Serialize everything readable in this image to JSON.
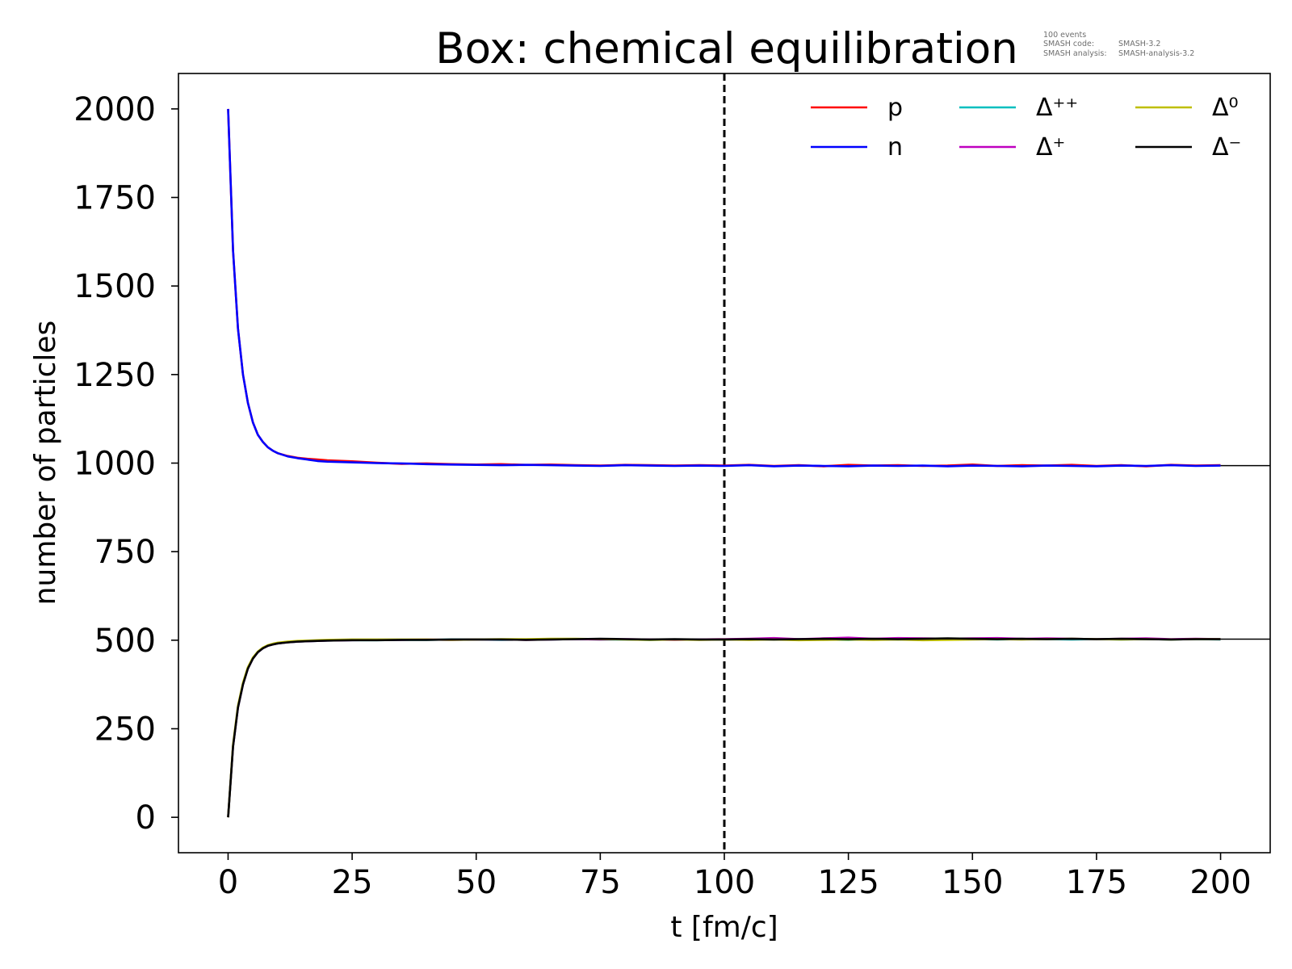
{
  "chart_data": {
    "type": "line",
    "title": "Box: chemical equilibration",
    "xlabel": "t [fm/c]",
    "ylabel": "number of particles",
    "xlim": [
      -10,
      210
    ],
    "ylim": [
      -100,
      2100
    ],
    "xticks": [
      0,
      25,
      50,
      75,
      100,
      125,
      150,
      175,
      200
    ],
    "yticks": [
      0,
      250,
      500,
      750,
      1000,
      1250,
      1500,
      1750,
      2000
    ],
    "grid": false,
    "legend_position": "top-right",
    "legend_columns": 3,
    "annotation": {
      "line1": "100 events",
      "line2_label": "SMASH code:",
      "line2_value": "SMASH-3.2",
      "line3_label": "SMASH analysis:",
      "line3_value": "SMASH-analysis-3.2"
    },
    "vertical_line": {
      "x": 100,
      "style": "dashed",
      "color": "#000000"
    },
    "equilibrium_lines": [
      {
        "y": 993,
        "x_from": 200,
        "x_to": 210,
        "color": "#000000"
      },
      {
        "y": 503,
        "x_from": 200,
        "x_to": 210,
        "color": "#000000"
      }
    ],
    "x": [
      0,
      1,
      2,
      3,
      4,
      5,
      6,
      7,
      8,
      9,
      10,
      12,
      14,
      16,
      18,
      20,
      25,
      30,
      35,
      40,
      45,
      50,
      55,
      60,
      65,
      70,
      75,
      80,
      85,
      90,
      95,
      100,
      105,
      110,
      115,
      120,
      125,
      130,
      135,
      140,
      145,
      150,
      155,
      160,
      165,
      170,
      175,
      180,
      185,
      190,
      195,
      200
    ],
    "series": [
      {
        "name": "p",
        "color": "#ff0000",
        "values": [
          2000,
          1600,
          1380,
          1250,
          1170,
          1115,
          1080,
          1060,
          1045,
          1035,
          1028,
          1020,
          1015,
          1012,
          1010,
          1008,
          1005,
          1001,
          998,
          999,
          997,
          996,
          997,
          995,
          996,
          994,
          993,
          995,
          994,
          993,
          994,
          993,
          995,
          992,
          994,
          991,
          995,
          993,
          994,
          992,
          993,
          996,
          992,
          994,
          993,
          995,
          992,
          994,
          991,
          995,
          993,
          994
        ]
      },
      {
        "name": "n",
        "color": "#0000ff",
        "values": [
          2000,
          1600,
          1380,
          1250,
          1170,
          1115,
          1080,
          1060,
          1045,
          1035,
          1028,
          1019,
          1014,
          1010,
          1006,
          1004,
          1002,
          1000,
          999,
          997,
          996,
          995,
          994,
          995,
          994,
          993,
          992,
          994,
          993,
          992,
          993,
          992,
          994,
          991,
          993,
          992,
          991,
          993,
          992,
          993,
          991,
          993,
          992,
          991,
          993,
          992,
          991,
          993,
          992,
          994,
          992,
          993
        ]
      },
      {
        "name": "Δ⁺⁺",
        "color": "#00bfbf",
        "values": [
          0,
          200,
          310,
          375,
          420,
          448,
          466,
          477,
          484,
          488,
          491,
          494,
          496,
          497,
          498,
          499,
          500,
          500,
          501,
          501,
          502,
          502,
          501,
          502,
          502,
          503,
          502,
          502,
          501,
          502,
          502,
          502,
          503,
          502,
          503,
          502,
          501,
          503,
          502,
          503,
          502,
          503,
          502,
          503,
          503,
          502,
          503,
          502,
          503,
          502,
          503,
          502
        ]
      },
      {
        "name": "Δ⁺",
        "color": "#bf00bf",
        "values": [
          0,
          200,
          310,
          375,
          420,
          448,
          466,
          477,
          484,
          488,
          491,
          494,
          496,
          497,
          498,
          499,
          500,
          501,
          501,
          502,
          501,
          502,
          502,
          501,
          502,
          503,
          502,
          503,
          502,
          501,
          502,
          503,
          504,
          506,
          503,
          505,
          507,
          504,
          506,
          505,
          504,
          505,
          506,
          504,
          505,
          504,
          503,
          504,
          505,
          503,
          504,
          503
        ]
      },
      {
        "name": "Δ⁰",
        "color": "#bfbf00",
        "values": [
          0,
          205,
          315,
          380,
          424,
          451,
          468,
          479,
          486,
          490,
          493,
          496,
          498,
          499,
          500,
          501,
          502,
          502,
          502,
          502,
          501,
          502,
          503,
          503,
          504,
          504,
          503,
          502,
          501,
          502,
          501,
          502,
          501,
          502,
          500,
          501,
          502,
          501,
          502,
          500,
          501,
          502,
          503,
          502,
          503,
          504,
          503,
          502,
          503,
          502,
          503,
          503
        ]
      },
      {
        "name": "Δ⁻",
        "color": "#000000",
        "values": [
          0,
          200,
          310,
          375,
          420,
          448,
          466,
          477,
          484,
          488,
          491,
          494,
          496,
          497,
          498,
          499,
          500,
          500,
          501,
          501,
          502,
          502,
          502,
          501,
          502,
          503,
          504,
          503,
          502,
          503,
          502,
          502,
          503,
          502,
          503,
          504,
          503,
          504,
          503,
          504,
          505,
          504,
          503,
          504,
          503,
          504,
          503,
          504,
          503,
          502,
          503,
          503
        ]
      }
    ]
  }
}
